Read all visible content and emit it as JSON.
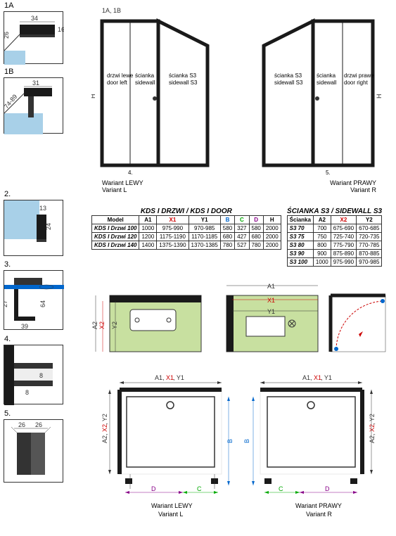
{
  "details": {
    "d1a": {
      "label": "1A",
      "dim1": "34",
      "dim2": "16",
      "dim3": "26"
    },
    "d1b": {
      "label": "1B",
      "dim1": "31",
      "dim2": "74-89"
    },
    "d2": {
      "label": "2.",
      "dim1": "13",
      "dim2": "24"
    },
    "d3": {
      "label": "3.",
      "dim1": "27",
      "dim2": "39",
      "dim3": "64"
    },
    "d4": {
      "label": "4.",
      "dim1": "8",
      "dim2": "8"
    },
    "d5": {
      "label": "5.",
      "dim1": "26",
      "dim2": "26"
    }
  },
  "iso": {
    "left": {
      "top_labels": "1A, 1B",
      "door": "drzwi lewe\ndoor left",
      "sidewall": "ścianka\nsidewall",
      "sidewall_s3": "ścianka S3\nsidewall S3",
      "height": "H",
      "foot4": "4.",
      "variant1": "Wariant LEWY",
      "variant2": "Variant L"
    },
    "right": {
      "door": "drzwi prawe\ndoor right",
      "sidewall": "ścianka\nsidewall",
      "sidewall_s3": "ścianka S3\nsidewall S3",
      "height": "H",
      "foot5": "5.",
      "variant1": "Wariant PRAWY",
      "variant2": "Variant R"
    }
  },
  "tables": {
    "door": {
      "title": "KDS I DRZWI / KDS I DOOR",
      "headers": [
        "Model",
        "A1",
        "X1",
        "Y1",
        "B",
        "C",
        "D",
        "H"
      ],
      "header_colors": [
        "#000",
        "#000",
        "#c00",
        "#000",
        "#06c",
        "#0a0",
        "#808",
        "#000"
      ],
      "rows": [
        [
          "KDS I Drzwi 100",
          "1000",
          "975-990",
          "970-985",
          "580",
          "327",
          "580",
          "2000"
        ],
        [
          "KDS I Drzwi 120",
          "1200",
          "1175-1190",
          "1170-1185",
          "680",
          "427",
          "680",
          "2000"
        ],
        [
          "KDS I Drzwi 140",
          "1400",
          "1375-1390",
          "1370-1385",
          "780",
          "527",
          "780",
          "2000"
        ]
      ]
    },
    "sidewall": {
      "title": "ŚCIANKA S3 / SIDEWALL S3",
      "headers": [
        "Ścianka",
        "A2",
        "X2",
        "Y2"
      ],
      "header_colors": [
        "#000",
        "#000",
        "#c00",
        "#000"
      ],
      "rows": [
        [
          "S3 70",
          "700",
          "675-690",
          "670-685"
        ],
        [
          "S3 75",
          "750",
          "725-740",
          "720-735"
        ],
        [
          "S3 80",
          "800",
          "775-790",
          "770-785"
        ],
        [
          "S3 90",
          "900",
          "875-890",
          "870-885"
        ],
        [
          "S3 100",
          "1000",
          "975-990",
          "970-985"
        ]
      ]
    }
  },
  "mid_diagrams": {
    "left": {
      "a2": "A2",
      "x2": "X2",
      "y2": "Y2"
    },
    "center": {
      "a1": "A1",
      "x1": "X1",
      "y1": "Y1"
    }
  },
  "plans": {
    "left": {
      "top_dim": "A1, X1, Y1",
      "side_dim": "A2, X2, Y2",
      "d": "D",
      "c": "C",
      "b": "B",
      "variant1": "Wariant LEWY",
      "variant2": "Variant L"
    },
    "right": {
      "top_dim": "A1, X1, Y1",
      "side_dim": "A2, X2, Y2",
      "d": "D",
      "c": "C",
      "b": "B",
      "variant1": "Wariant PRAWY",
      "variant2": "Variant R"
    }
  },
  "colors": {
    "glass": "#a8d0e8",
    "glass_dark": "#7ab8d8",
    "detail_green": "#c8e0a0",
    "black": "#1a1a1a",
    "red": "#c00",
    "blue": "#06c",
    "green": "#0a0"
  }
}
